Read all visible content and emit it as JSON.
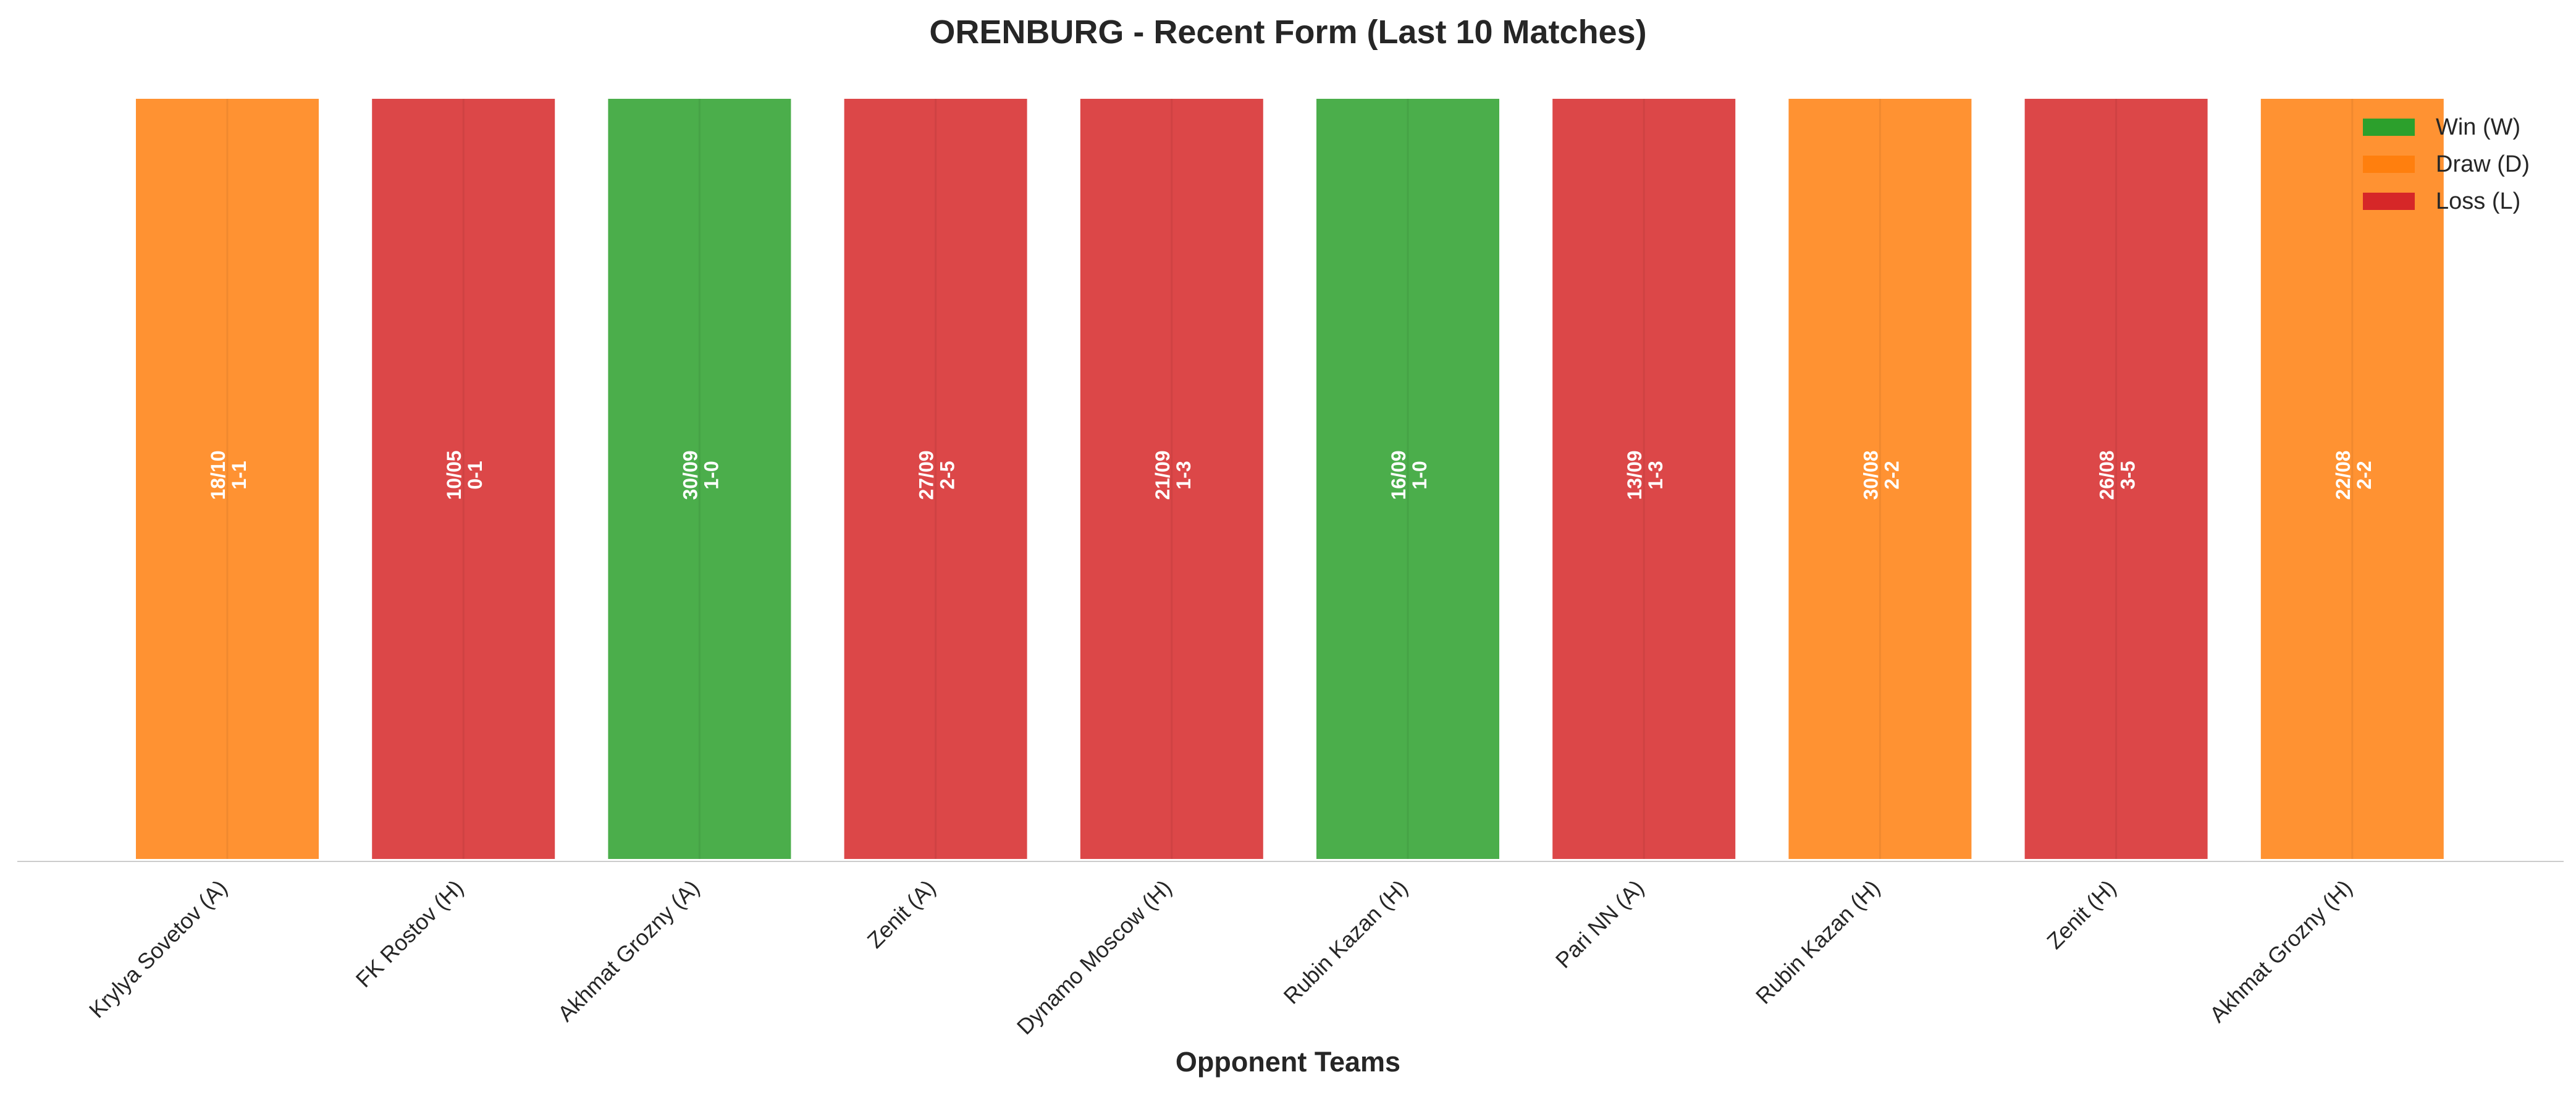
{
  "chart_data": {
    "type": "bar",
    "title": "ORENBURG - Recent Form (Last 10 Matches)",
    "xlabel": "Opponent Teams",
    "ylabel": "",
    "ylim": [
      0,
      1
    ],
    "grid": false,
    "legend_position": "top-right",
    "categories": [
      "Krylya Sovetov (A)",
      "FK Rostov (H)",
      "Akhmat Grozny (A)",
      "Zenit (A)",
      "Dynamo Moscow (H)",
      "Rubin Kazan (H)",
      "Pari NN (A)",
      "Rubin Kazan (H)",
      "Zenit (H)",
      "Akhmat Grozny (H)"
    ],
    "values": [
      1,
      1,
      1,
      1,
      1,
      1,
      1,
      1,
      1,
      1
    ],
    "results": [
      "D",
      "L",
      "W",
      "L",
      "L",
      "W",
      "L",
      "D",
      "L",
      "D"
    ],
    "dates": [
      "18/10",
      "10/05",
      "30/09",
      "27/09",
      "21/09",
      "16/09",
      "13/09",
      "30/08",
      "26/08",
      "22/08"
    ],
    "scores": [
      "1-1",
      "0-1",
      "1-0",
      "2-5",
      "1-3",
      "1-0",
      "1-3",
      "2-2",
      "3-5",
      "2-2"
    ],
    "legend": [
      {
        "key": "W",
        "label": "Win (W)",
        "color": "#2ca02c"
      },
      {
        "key": "D",
        "label": "Draw (D)",
        "color": "#ff7f0e"
      },
      {
        "key": "L",
        "label": "Loss (L)",
        "color": "#d62728"
      }
    ]
  }
}
